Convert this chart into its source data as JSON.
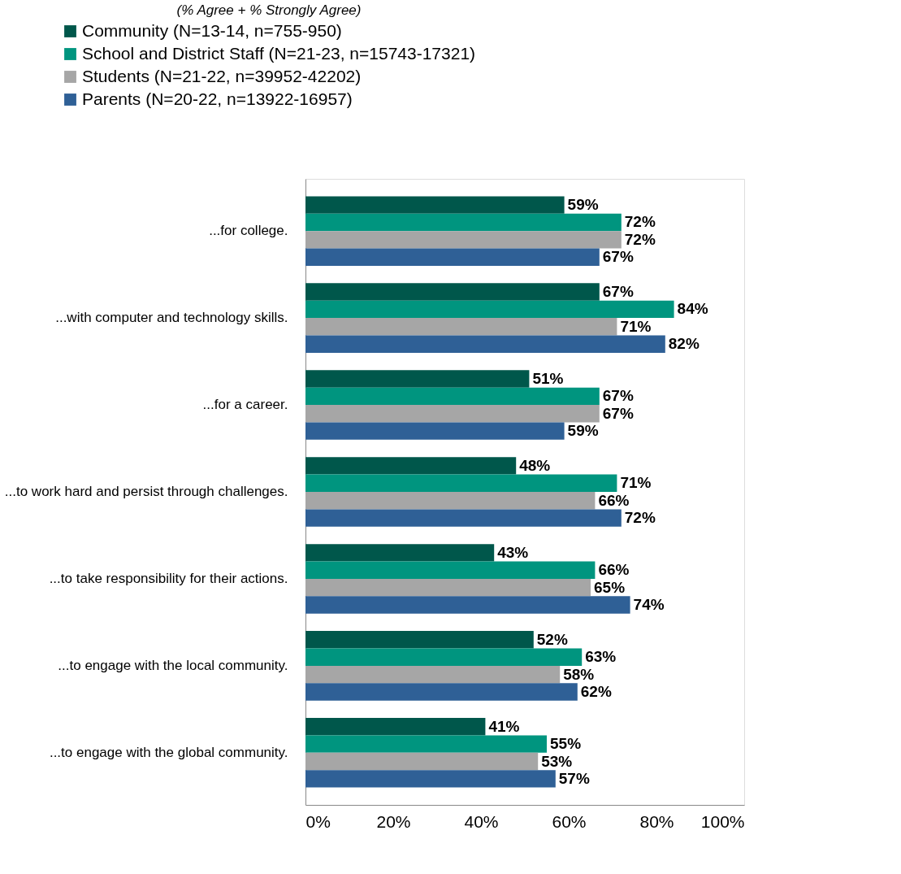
{
  "chart_data": {
    "type": "bar",
    "orientation": "horizontal",
    "legend_title": "(% Agree + % Strongly Agree)",
    "legend": "top",
    "categories": [
      "...for college.",
      "...with computer and technology skills.",
      "...for a career.",
      "...to work hard and persist through challenges.",
      "...to take responsibility for their actions.",
      "...to engage with the local community.",
      "...to engage with the global community."
    ],
    "series": [
      {
        "name": "Community (N=13-14, n=755-950)",
        "color": "#00574b",
        "values": [
          59,
          67,
          51,
          48,
          43,
          52,
          41
        ],
        "value_labels": [
          "59%",
          "67%",
          "51%",
          "48%",
          "43%",
          "52%",
          "41%"
        ]
      },
      {
        "name": "School and District Staff (N=21-23, n=15743-17321)",
        "color": "#00957f",
        "values": [
          72,
          84,
          67,
          71,
          66,
          63,
          55
        ],
        "value_labels": [
          "72%",
          "84%",
          "67%",
          "71%",
          "66%",
          "63%",
          "55%"
        ]
      },
      {
        "name": "Students (N=21-22, n=39952-42202)",
        "color": "#a6a6a6",
        "values": [
          72,
          71,
          67,
          66,
          65,
          58,
          53
        ],
        "value_labels": [
          "72%",
          "71%",
          "67%",
          "66%",
          "65%",
          "58%",
          "53%"
        ]
      },
      {
        "name": "Parents (N=20-22, n=13922-16957)",
        "color": "#2f6096",
        "values": [
          67,
          82,
          59,
          72,
          74,
          62,
          57
        ],
        "value_labels": [
          "67%",
          "82%",
          "59%",
          "72%",
          "74%",
          "62%",
          "57%"
        ]
      }
    ],
    "xlim": [
      0,
      100
    ],
    "xticks": [
      {
        "value": 0,
        "label": "0%"
      },
      {
        "value": 20,
        "label": "20%"
      },
      {
        "value": 40,
        "label": "40%"
      },
      {
        "value": 60,
        "label": "60%"
      },
      {
        "value": 80,
        "label": "80%"
      },
      {
        "value": 100,
        "label": "100%"
      }
    ],
    "grid": false
  }
}
